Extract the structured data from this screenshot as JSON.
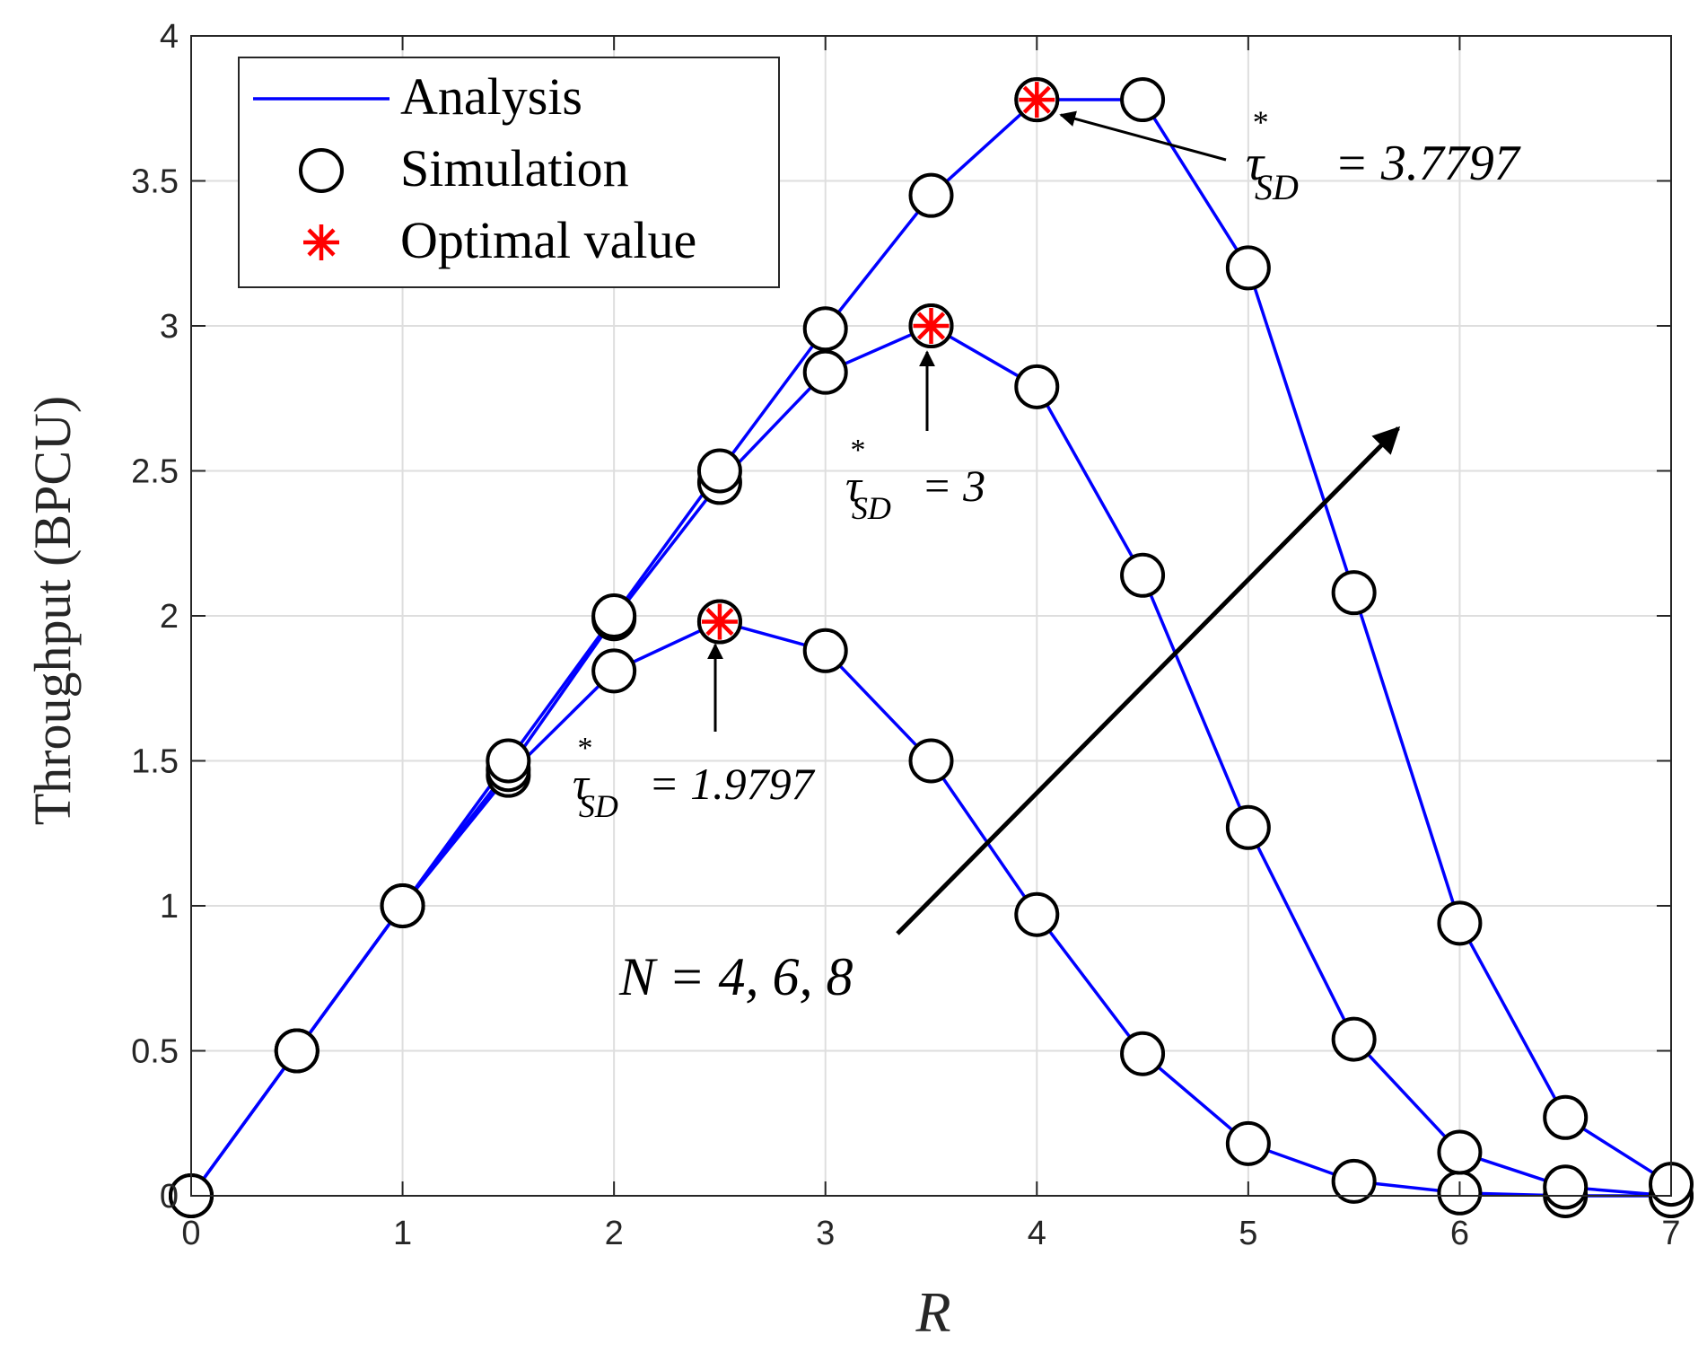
{
  "chart_data": {
    "type": "line",
    "title": "",
    "xlabel": "R",
    "ylabel": "Throughput (BPCU)",
    "xlim": [
      0,
      7
    ],
    "ylim": [
      0,
      4
    ],
    "grid": true,
    "xticks": [
      0,
      1,
      2,
      3,
      4,
      5,
      6,
      7
    ],
    "yticks": [
      0,
      0.5,
      1,
      1.5,
      2,
      2.5,
      3,
      3.5,
      4
    ],
    "xtick_labels": [
      "0",
      "1",
      "2",
      "3",
      "4",
      "5",
      "6",
      "7"
    ],
    "ytick_labels": [
      "0",
      "0.5",
      "1",
      "1.5",
      "2",
      "2.5",
      "3",
      "3.5",
      "4"
    ],
    "legend": {
      "placement": "top-left",
      "entries": [
        {
          "label": "Analysis",
          "marker": "line"
        },
        {
          "label": "Simulation",
          "marker": "circle"
        },
        {
          "label": "Optimal value",
          "marker": "asterisk"
        }
      ]
    },
    "colors": {
      "line": "#0000ff",
      "optimal": "#ff0000",
      "marker_edge": "#000000",
      "grid": "#dedede"
    },
    "x": [
      0,
      0.5,
      1,
      1.5,
      2,
      2.5,
      3,
      3.5,
      4,
      4.5,
      5,
      5.5,
      6,
      6.5,
      7
    ],
    "series": [
      {
        "values": [
          0,
          0.5,
          1.0,
          1.45,
          1.81,
          1.98,
          1.88,
          1.5,
          0.97,
          0.49,
          0.18,
          0.05,
          0.01,
          0.0,
          0.0
        ]
      },
      {
        "values": [
          0,
          0.5,
          1.0,
          1.47,
          1.99,
          2.46,
          2.84,
          3.0,
          2.79,
          2.14,
          1.27,
          0.54,
          0.15,
          0.03,
          0.0
        ]
      },
      {
        "values": [
          0,
          0.5,
          1.0,
          1.5,
          2.0,
          2.5,
          2.99,
          3.45,
          3.78,
          3.78,
          3.2,
          2.08,
          0.94,
          0.27,
          0.04
        ]
      }
    ],
    "optimal_points": [
      {
        "x": 2.5,
        "y": 1.9797
      },
      {
        "x": 3.5,
        "y": 3.0
      },
      {
        "x": 4.0,
        "y": 3.7797
      }
    ],
    "annotations": [
      {
        "symbol": "τ",
        "sup": "*",
        "sub": "SD",
        "value": "= 1.9797"
      },
      {
        "symbol": "τ",
        "sup": "*",
        "sub": "SD",
        "value": "= 3"
      },
      {
        "symbol": "τ",
        "sup": "*",
        "sub": "SD",
        "value": "= 3.7797"
      },
      {
        "text": "N = 4, 6, 8"
      }
    ]
  }
}
